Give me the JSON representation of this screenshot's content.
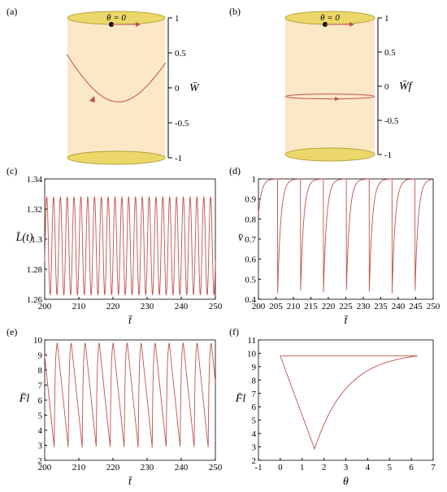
{
  "colors": {
    "curve": "#c0504d",
    "cylinder_body": "#fbe8c7",
    "cylinder_cap": "#ecd76a",
    "cylinder_cap_edge": "#b8a43a",
    "axis": "#000000"
  },
  "chart_data": [
    {
      "id": "a",
      "type": "line",
      "panel_label": "(a)",
      "title": "",
      "ylabel": "W̄",
      "ylim": [
        -1,
        1
      ],
      "y_ticks": [
        "1",
        "0.5",
        "0",
        "-0.5",
        "-1"
      ],
      "annotation": "θ = 0",
      "series": [
        {
          "description": "figure-eight trajectory on cylinder surface",
          "theta_deg": [
            0,
            30,
            60,
            90,
            120,
            150,
            180,
            210,
            240,
            270,
            300,
            330,
            360
          ],
          "w": [
            -0.2,
            0.05,
            0.3,
            0.42,
            0.3,
            0.05,
            -0.2,
            0.05,
            0.3,
            0.42,
            0.3,
            0.05,
            -0.2
          ]
        }
      ]
    },
    {
      "id": "b",
      "type": "line",
      "panel_label": "(b)",
      "title": "",
      "ylabel": "W̄f",
      "ylim": [
        -1,
        1
      ],
      "y_ticks": [
        "1",
        "0.5",
        "0",
        "-0.5",
        "-1"
      ],
      "annotation": "θ = 0",
      "series": [
        {
          "description": "horizontal circle on cylinder",
          "w": -0.15
        }
      ]
    },
    {
      "id": "c",
      "type": "line",
      "panel_label": "(c)",
      "xlabel": "t̄",
      "ylabel": "L̄(t)",
      "xlim": [
        200,
        250
      ],
      "ylim": [
        1.26,
        1.34
      ],
      "x_ticks": [
        "200",
        "210",
        "220",
        "230",
        "240",
        "250"
      ],
      "y_ticks": [
        "1.26",
        "1.28",
        "1.3",
        "1.32",
        "1.34"
      ],
      "series": [
        {
          "period": 2.0,
          "min": 1.263,
          "max": 1.328,
          "form": "sinusoid"
        }
      ]
    },
    {
      "id": "d",
      "type": "line",
      "panel_label": "(d)",
      "xlabel": "t̄",
      "ylabel": "v̄",
      "xlim": [
        200,
        250
      ],
      "ylim": [
        0.4,
        1.0
      ],
      "x_ticks": [
        "200",
        "205",
        "210",
        "215",
        "220",
        "225",
        "230",
        "235",
        "240",
        "245",
        "250"
      ],
      "y_ticks": [
        "0.4",
        "0.5",
        "0.6",
        "0.7",
        "0.8",
        "0.9",
        "1"
      ],
      "series": [
        {
          "period": 6.55,
          "min": 0.43,
          "max": 1.0,
          "first_min_at": 205.5,
          "form": "cusp"
        }
      ]
    },
    {
      "id": "e",
      "type": "line",
      "panel_label": "(e)",
      "xlabel": "t̄",
      "ylabel": "F̄l",
      "xlim": [
        200,
        250
      ],
      "ylim": [
        2,
        10
      ],
      "x_ticks": [
        "200",
        "210",
        "220",
        "230",
        "240",
        "250"
      ],
      "y_ticks": [
        "2",
        "3",
        "4",
        "5",
        "6",
        "7",
        "8",
        "9",
        "10"
      ],
      "series": [
        {
          "period": 4.1,
          "min": 2.85,
          "max": 9.8,
          "first_min_at": 202.8,
          "form": "sawtooth"
        }
      ]
    },
    {
      "id": "f",
      "type": "line",
      "panel_label": "(f)",
      "xlabel": "θ",
      "ylabel": "F̄l",
      "xlim": [
        -1,
        7
      ],
      "ylim": [
        2,
        11
      ],
      "x_ticks": [
        "-1",
        "0",
        "1",
        "2",
        "3",
        "4",
        "5",
        "6",
        "7"
      ],
      "y_ticks": [
        "2",
        "3",
        "4",
        "5",
        "6",
        "7",
        "8",
        "9",
        "10",
        "11"
      ],
      "series": [
        {
          "x": [
            0,
            1.57,
            6.28
          ],
          "y": [
            9.8,
            2.85,
            9.8
          ],
          "form": "closed loop: drop then exponential rise"
        },
        {
          "x": [
            0,
            6.28
          ],
          "y": [
            9.8,
            9.8
          ],
          "form": "top horizontal segment"
        }
      ]
    }
  ]
}
